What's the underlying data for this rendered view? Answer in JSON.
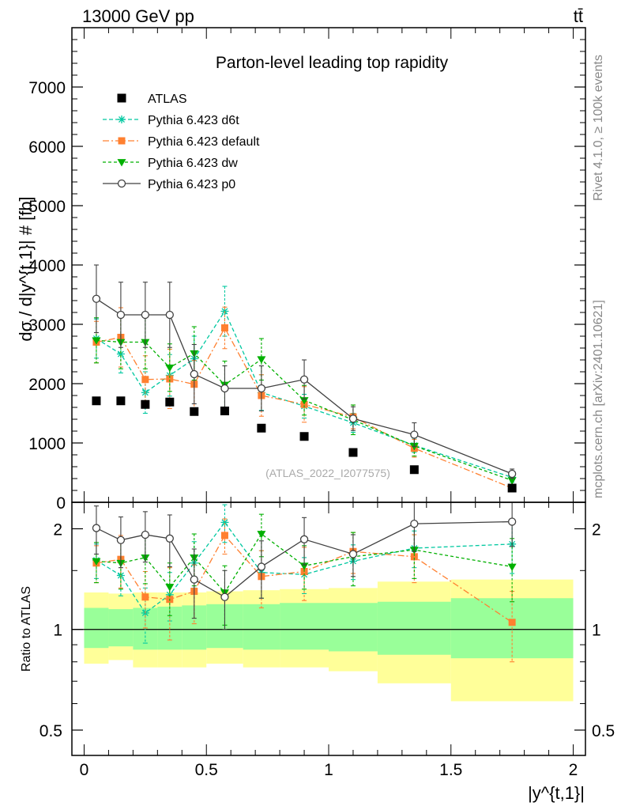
{
  "header": {
    "energy_label": "13000 GeV pp",
    "process_label": "tt̄",
    "rivet_label": "Rivet 4.1.0, ≥ 100k events",
    "mcplots_label": "mcplots.cern.ch [arXiv:2401.10621]"
  },
  "colors": {
    "ATLAS": "#000000",
    "d6t": "#00c8a0",
    "default": "#ff8030",
    "dw": "#00b000",
    "p0": "#404040",
    "band_inner": "#99ff99",
    "band_outer": "#ffff99"
  },
  "chart_data": [
    {
      "type": "scatter",
      "title": "Parton-level leading top rapidity",
      "analysis_tag": "(ATLAS_2022_I2077575)",
      "xlabel": "|y^{t,1}|",
      "ylabel": "dσ / d|y^{t,1}| # [fb]",
      "xlim": [
        -0.05,
        2.05
      ],
      "ylim": [
        0,
        8000
      ],
      "yticks": [
        0,
        1000,
        2000,
        3000,
        4000,
        5000,
        6000,
        7000
      ],
      "ytick_labels": [
        "0",
        "1000",
        "2000",
        "3000",
        "4000",
        "5000",
        "6000",
        "7000"
      ],
      "x": [
        0.05,
        0.15,
        0.25,
        0.35,
        0.45,
        0.575,
        0.725,
        0.9,
        1.1,
        1.35,
        1.75
      ],
      "bin_edges": [
        0.0,
        0.1,
        0.2,
        0.3,
        0.4,
        0.5,
        0.65,
        0.8,
        1.0,
        1.2,
        1.5,
        2.0
      ],
      "legend": [
        "ATLAS",
        "Pythia 6.423 d6t",
        "Pythia 6.423 default",
        "Pythia 6.423 dw",
        "Pythia 6.423 p0"
      ],
      "series": [
        {
          "key": "ATLAS",
          "name": "ATLAS",
          "marker": "square",
          "values": [
            1710,
            1710,
            1650,
            1690,
            1530,
            1540,
            1250,
            1110,
            840,
            550,
            240
          ]
        },
        {
          "key": "d6t",
          "name": "Pythia 6.423 d6t",
          "marker": "star",
          "values": [
            2760,
            2500,
            1850,
            2140,
            2420,
            3220,
            1850,
            1620,
            1340,
            960,
            420
          ],
          "errors": [
            330,
            320,
            350,
            350,
            380,
            420,
            300,
            200,
            160,
            120,
            80
          ]
        },
        {
          "key": "default",
          "name": "Pythia 6.423 default",
          "marker": "filled-square",
          "values": [
            2700,
            2780,
            2070,
            2080,
            1990,
            2940,
            1800,
            1650,
            1440,
            910,
            240
          ],
          "errors": [
            350,
            500,
            400,
            500,
            400,
            350,
            350,
            300,
            200,
            150,
            60
          ]
        },
        {
          "key": "dw",
          "name": "Pythia 6.423 dw",
          "marker": "triangle-down",
          "values": [
            2730,
            2700,
            2700,
            2270,
            2510,
            1980,
            2410,
            1720,
            1390,
            950,
            370
          ],
          "errors": [
            380,
            450,
            450,
            400,
            450,
            400,
            350,
            250,
            250,
            170,
            80
          ]
        },
        {
          "key": "p0",
          "name": "Pythia 6.423 p0",
          "marker": "open-circle",
          "values": [
            3430,
            3160,
            3160,
            3160,
            2160,
            1920,
            1920,
            2070,
            1410,
            1140,
            480
          ],
          "errors": [
            570,
            550,
            550,
            550,
            500,
            380,
            380,
            330,
            200,
            200,
            80
          ]
        }
      ]
    },
    {
      "type": "scatter",
      "title": "Ratio to ATLAS",
      "ylabel": "Ratio to ATLAS",
      "yscale": "log",
      "ylim": [
        0.42,
        2.4
      ],
      "yticks": [
        0.5,
        1,
        2
      ],
      "ytick_labels": [
        "0.5",
        "1",
        "2"
      ],
      "xticks": [
        0,
        0.5,
        1,
        1.5,
        2
      ],
      "xtick_labels": [
        "0",
        "0.5",
        "1",
        "1.5",
        "2"
      ],
      "band_inner_lo": [
        0.88,
        0.89,
        0.87,
        0.87,
        0.87,
        0.88,
        0.87,
        0.87,
        0.86,
        0.84,
        0.82
      ],
      "band_inner_hi": [
        1.16,
        1.15,
        1.16,
        1.17,
        1.18,
        1.19,
        1.19,
        1.2,
        1.2,
        1.21,
        1.24
      ],
      "band_outer_lo": [
        0.79,
        0.81,
        0.77,
        0.77,
        0.77,
        0.79,
        0.77,
        0.77,
        0.75,
        0.69,
        0.61
      ],
      "band_outer_hi": [
        1.29,
        1.28,
        1.29,
        1.29,
        1.29,
        1.3,
        1.31,
        1.32,
        1.33,
        1.39,
        1.41
      ],
      "series": [
        {
          "key": "d6t",
          "values": [
            1.61,
            1.45,
            1.12,
            1.27,
            1.58,
            2.09,
            1.48,
            1.46,
            1.6,
            1.75,
            1.8
          ],
          "errors": [
            0.19,
            0.19,
            0.21,
            0.21,
            0.25,
            0.27,
            0.24,
            0.18,
            0.19,
            0.22,
            0.33
          ]
        },
        {
          "key": "default",
          "values": [
            1.58,
            1.62,
            1.25,
            1.23,
            1.3,
            1.91,
            1.44,
            1.49,
            1.71,
            1.65,
            1.05
          ],
          "errors": [
            0.2,
            0.29,
            0.24,
            0.3,
            0.26,
            0.23,
            0.28,
            0.27,
            0.24,
            0.27,
            0.25
          ]
        },
        {
          "key": "dw",
          "values": [
            1.6,
            1.58,
            1.64,
            1.34,
            1.64,
            1.29,
            1.93,
            1.55,
            1.65,
            1.73,
            1.54
          ],
          "errors": [
            0.22,
            0.26,
            0.27,
            0.24,
            0.29,
            0.26,
            0.28,
            0.23,
            0.3,
            0.31,
            0.33
          ]
        },
        {
          "key": "p0",
          "values": [
            2.01,
            1.85,
            1.92,
            1.87,
            1.41,
            1.25,
            1.54,
            1.86,
            1.68,
            2.07,
            2.1
          ],
          "errors": [
            0.33,
            0.32,
            0.33,
            0.33,
            0.33,
            0.25,
            0.3,
            0.3,
            0.24,
            0.36,
            0.33
          ]
        }
      ]
    }
  ]
}
